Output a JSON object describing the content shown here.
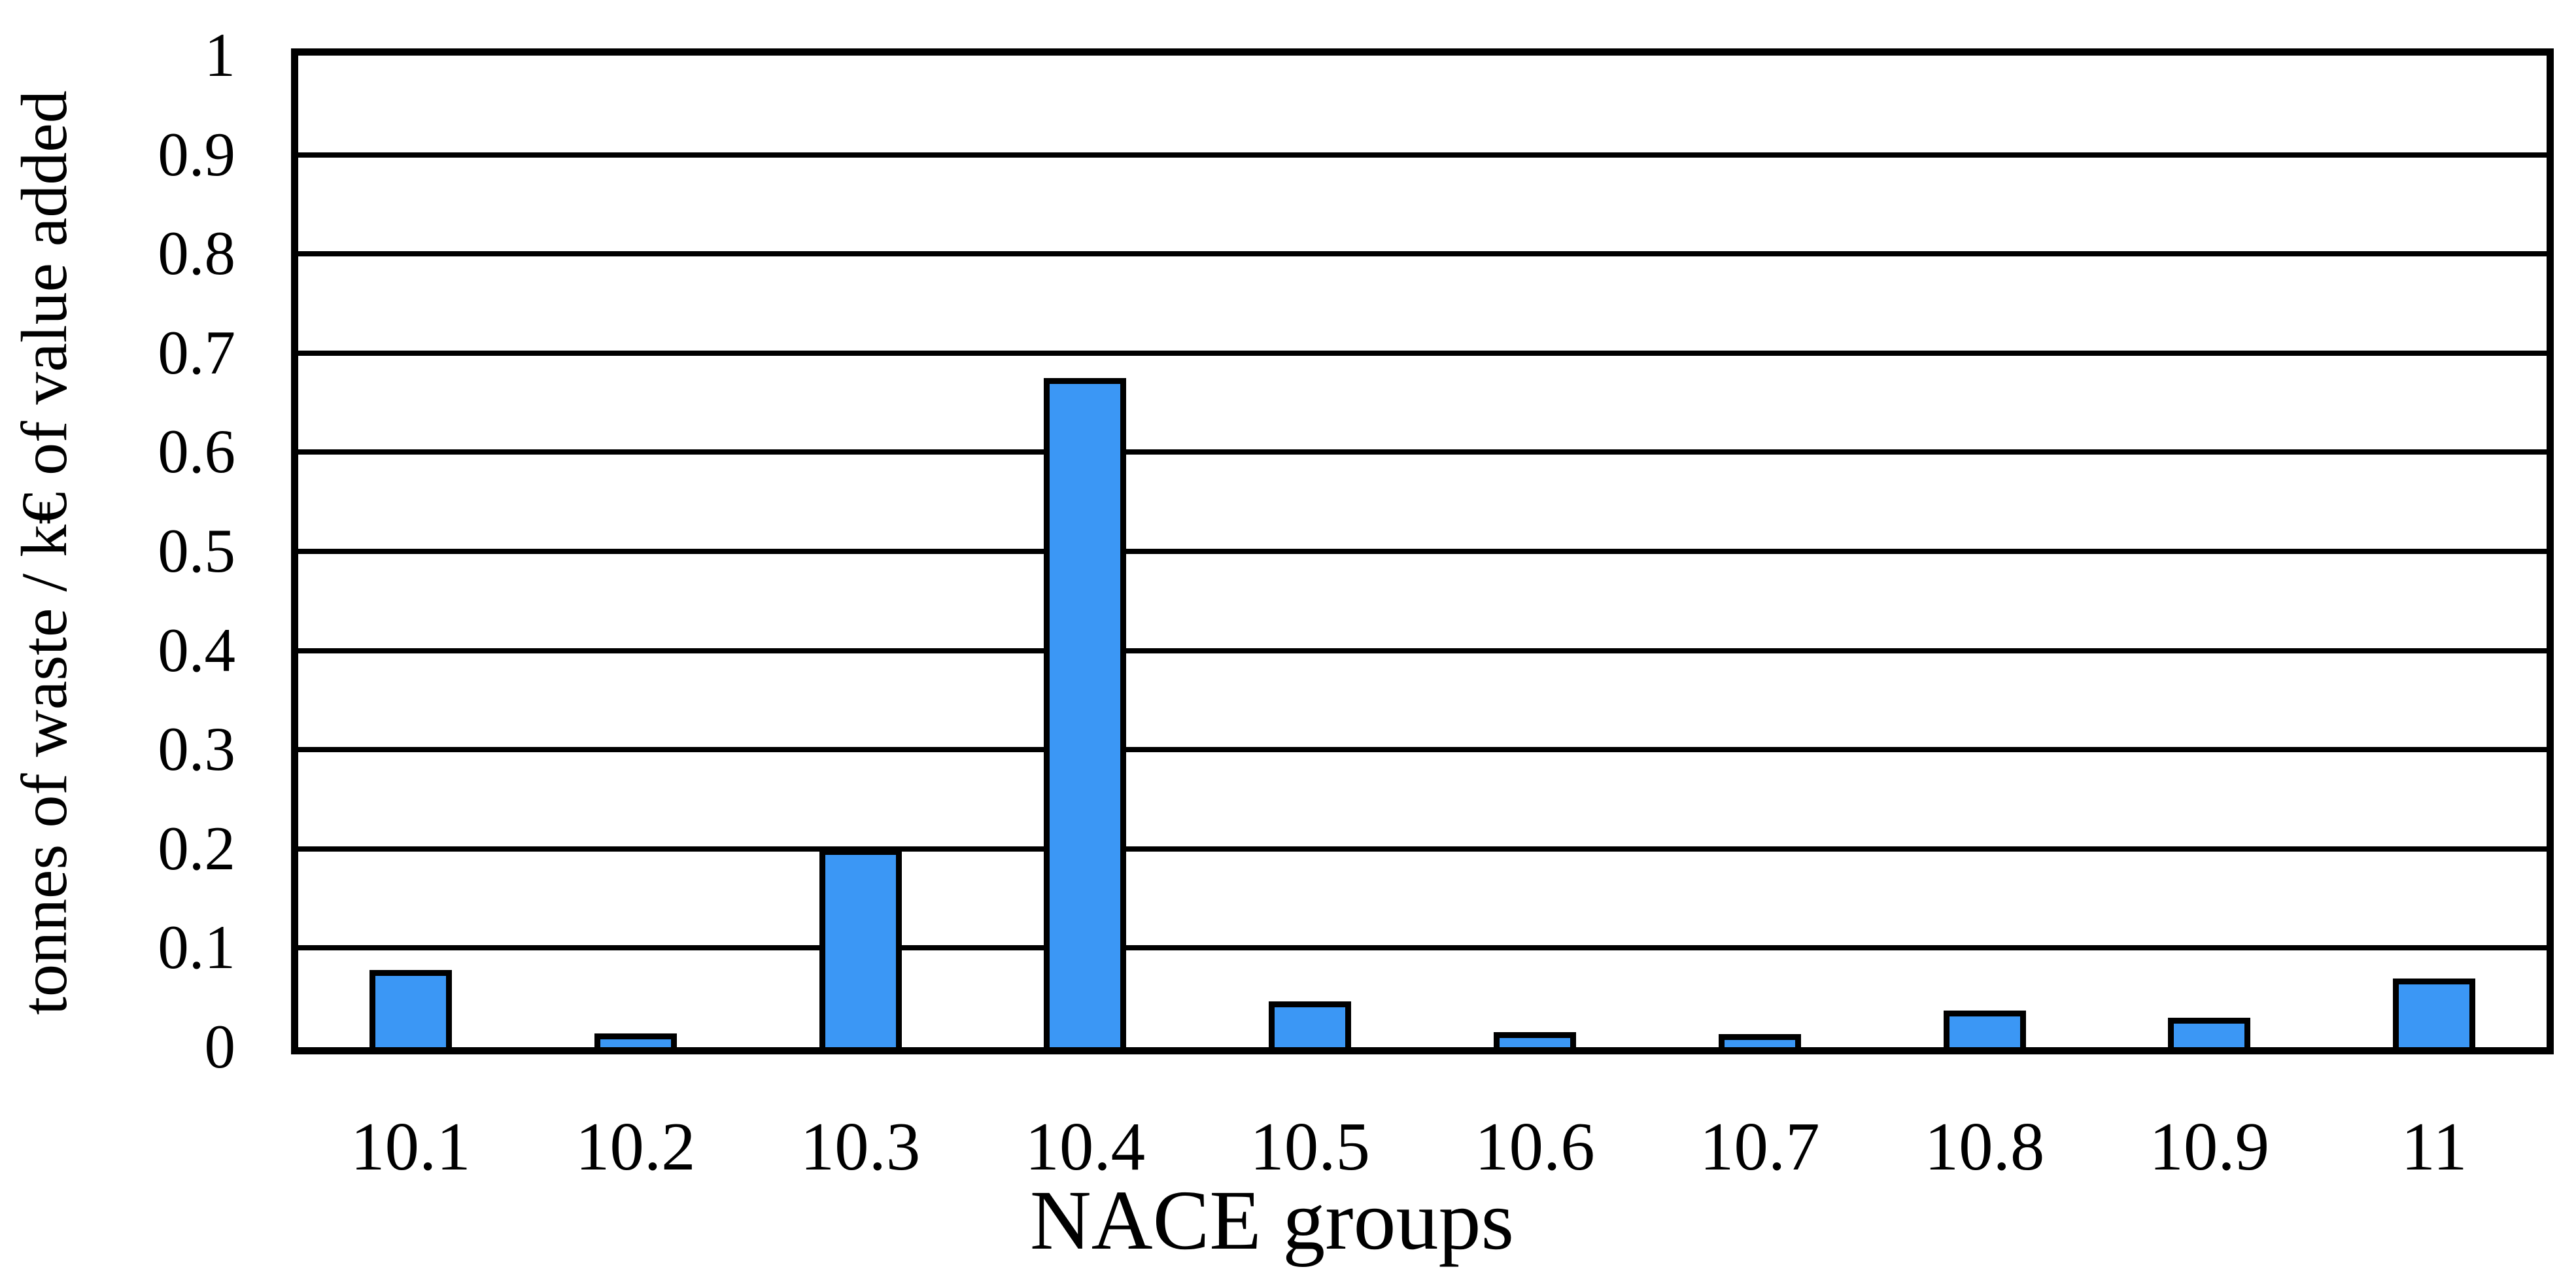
{
  "chart_data": {
    "type": "bar",
    "title": "",
    "xlabel": "NACE groups",
    "ylabel": "tonnes of waste / k€ of value added",
    "categories": [
      "10.1",
      "10.2",
      "10.3",
      "10.4",
      "10.5",
      "10.6",
      "10.7",
      "10.8",
      "10.9",
      "11"
    ],
    "values": [
      0.078,
      0.014,
      0.2,
      0.675,
      0.046,
      0.015,
      0.013,
      0.037,
      0.03,
      0.069
    ],
    "ylim": [
      0,
      1
    ],
    "y_tick_labels": [
      "1",
      "0.9",
      "0.8",
      "0.7",
      "0.6",
      "0.5",
      "0.4",
      "0.3",
      "0.2",
      "0.1",
      "0"
    ],
    "y_tick_values": [
      1,
      0.9,
      0.8,
      0.7,
      0.6,
      0.5,
      0.4,
      0.3,
      0.2,
      0.1,
      0
    ],
    "grid": "horizontal",
    "legend": "none",
    "colors": {
      "bar_fill": "#3B97F5",
      "bar_border": "#000000",
      "grid_color": "#000000",
      "background": "#FFFFFF",
      "text": "#000000"
    }
  }
}
